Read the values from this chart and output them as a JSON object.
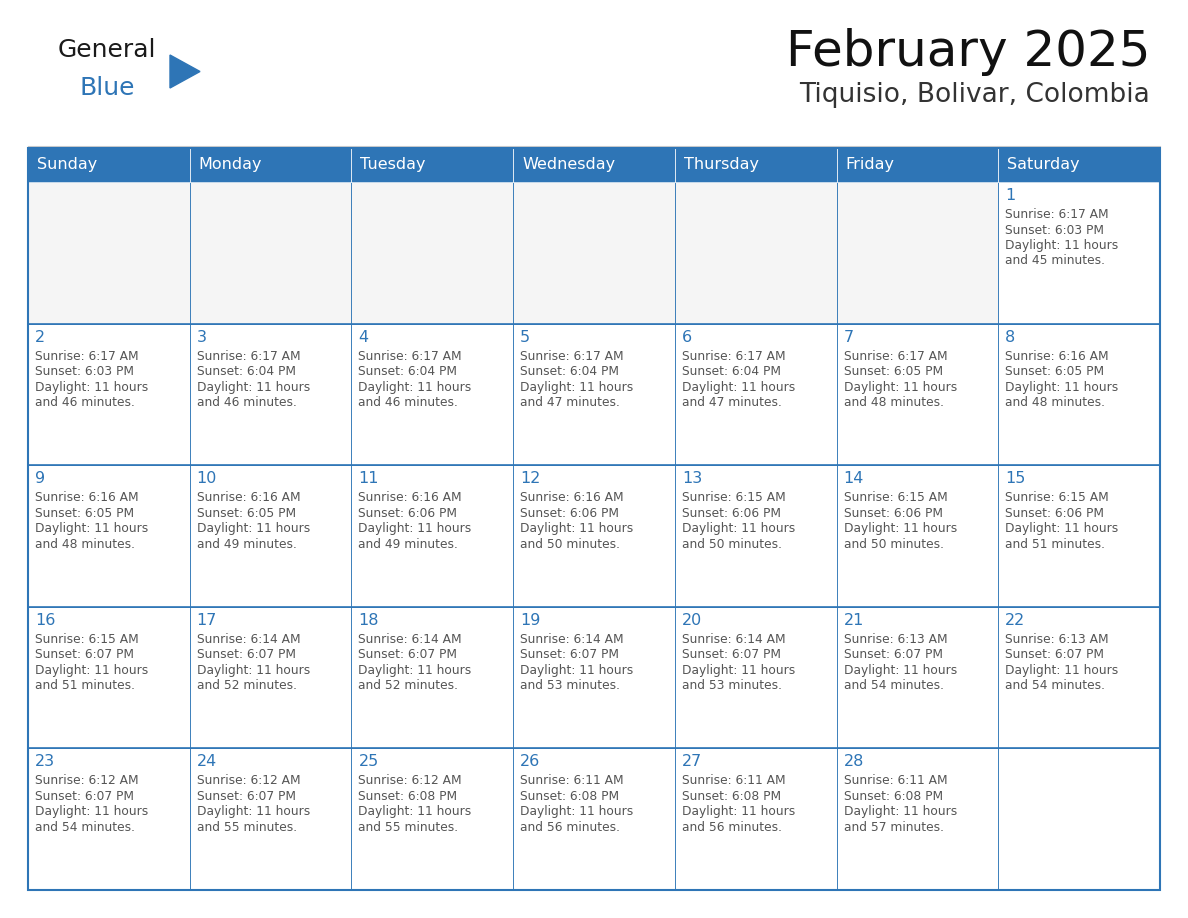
{
  "title": "February 2025",
  "subtitle": "Tiquisio, Bolivar, Colombia",
  "header_color": "#2E75B6",
  "header_text_color": "#FFFFFF",
  "cell_border_color": "#2E75B6",
  "day_number_color": "#2E75B6",
  "cell_text_color": "#555555",
  "background_color": "#FFFFFF",
  "row1_bg": "#F2F2F2",
  "days_of_week": [
    "Sunday",
    "Monday",
    "Tuesday",
    "Wednesday",
    "Thursday",
    "Friday",
    "Saturday"
  ],
  "calendar": [
    [
      null,
      null,
      null,
      null,
      null,
      null,
      {
        "day": 1,
        "sunrise": "6:17 AM",
        "sunset": "6:03 PM",
        "daylight_hours": 11,
        "daylight_minutes": 45
      }
    ],
    [
      {
        "day": 2,
        "sunrise": "6:17 AM",
        "sunset": "6:03 PM",
        "daylight_hours": 11,
        "daylight_minutes": 46
      },
      {
        "day": 3,
        "sunrise": "6:17 AM",
        "sunset": "6:04 PM",
        "daylight_hours": 11,
        "daylight_minutes": 46
      },
      {
        "day": 4,
        "sunrise": "6:17 AM",
        "sunset": "6:04 PM",
        "daylight_hours": 11,
        "daylight_minutes": 46
      },
      {
        "day": 5,
        "sunrise": "6:17 AM",
        "sunset": "6:04 PM",
        "daylight_hours": 11,
        "daylight_minutes": 47
      },
      {
        "day": 6,
        "sunrise": "6:17 AM",
        "sunset": "6:04 PM",
        "daylight_hours": 11,
        "daylight_minutes": 47
      },
      {
        "day": 7,
        "sunrise": "6:17 AM",
        "sunset": "6:05 PM",
        "daylight_hours": 11,
        "daylight_minutes": 48
      },
      {
        "day": 8,
        "sunrise": "6:16 AM",
        "sunset": "6:05 PM",
        "daylight_hours": 11,
        "daylight_minutes": 48
      }
    ],
    [
      {
        "day": 9,
        "sunrise": "6:16 AM",
        "sunset": "6:05 PM",
        "daylight_hours": 11,
        "daylight_minutes": 48
      },
      {
        "day": 10,
        "sunrise": "6:16 AM",
        "sunset": "6:05 PM",
        "daylight_hours": 11,
        "daylight_minutes": 49
      },
      {
        "day": 11,
        "sunrise": "6:16 AM",
        "sunset": "6:06 PM",
        "daylight_hours": 11,
        "daylight_minutes": 49
      },
      {
        "day": 12,
        "sunrise": "6:16 AM",
        "sunset": "6:06 PM",
        "daylight_hours": 11,
        "daylight_minutes": 50
      },
      {
        "day": 13,
        "sunrise": "6:15 AM",
        "sunset": "6:06 PM",
        "daylight_hours": 11,
        "daylight_minutes": 50
      },
      {
        "day": 14,
        "sunrise": "6:15 AM",
        "sunset": "6:06 PM",
        "daylight_hours": 11,
        "daylight_minutes": 50
      },
      {
        "day": 15,
        "sunrise": "6:15 AM",
        "sunset": "6:06 PM",
        "daylight_hours": 11,
        "daylight_minutes": 51
      }
    ],
    [
      {
        "day": 16,
        "sunrise": "6:15 AM",
        "sunset": "6:07 PM",
        "daylight_hours": 11,
        "daylight_minutes": 51
      },
      {
        "day": 17,
        "sunrise": "6:14 AM",
        "sunset": "6:07 PM",
        "daylight_hours": 11,
        "daylight_minutes": 52
      },
      {
        "day": 18,
        "sunrise": "6:14 AM",
        "sunset": "6:07 PM",
        "daylight_hours": 11,
        "daylight_minutes": 52
      },
      {
        "day": 19,
        "sunrise": "6:14 AM",
        "sunset": "6:07 PM",
        "daylight_hours": 11,
        "daylight_minutes": 53
      },
      {
        "day": 20,
        "sunrise": "6:14 AM",
        "sunset": "6:07 PM",
        "daylight_hours": 11,
        "daylight_minutes": 53
      },
      {
        "day": 21,
        "sunrise": "6:13 AM",
        "sunset": "6:07 PM",
        "daylight_hours": 11,
        "daylight_minutes": 54
      },
      {
        "day": 22,
        "sunrise": "6:13 AM",
        "sunset": "6:07 PM",
        "daylight_hours": 11,
        "daylight_minutes": 54
      }
    ],
    [
      {
        "day": 23,
        "sunrise": "6:12 AM",
        "sunset": "6:07 PM",
        "daylight_hours": 11,
        "daylight_minutes": 54
      },
      {
        "day": 24,
        "sunrise": "6:12 AM",
        "sunset": "6:07 PM",
        "daylight_hours": 11,
        "daylight_minutes": 55
      },
      {
        "day": 25,
        "sunrise": "6:12 AM",
        "sunset": "6:08 PM",
        "daylight_hours": 11,
        "daylight_minutes": 55
      },
      {
        "day": 26,
        "sunrise": "6:11 AM",
        "sunset": "6:08 PM",
        "daylight_hours": 11,
        "daylight_minutes": 56
      },
      {
        "day": 27,
        "sunrise": "6:11 AM",
        "sunset": "6:08 PM",
        "daylight_hours": 11,
        "daylight_minutes": 56
      },
      {
        "day": 28,
        "sunrise": "6:11 AM",
        "sunset": "6:08 PM",
        "daylight_hours": 11,
        "daylight_minutes": 57
      },
      null
    ]
  ]
}
